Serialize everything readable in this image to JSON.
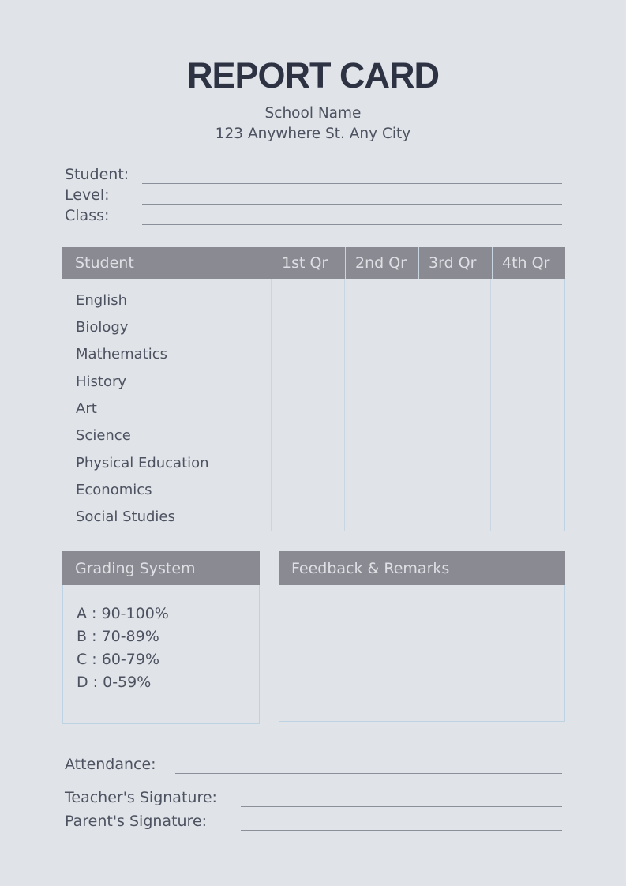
{
  "header": {
    "title": "REPORT CARD",
    "school_name": "School Name",
    "school_address": "123 Anywhere St. Any City"
  },
  "student_info": {
    "fields": [
      {
        "label": "Student:",
        "value": ""
      },
      {
        "label": "Level:",
        "value": ""
      },
      {
        "label": "Class:",
        "value": ""
      }
    ]
  },
  "grades_table": {
    "headers": [
      "Student",
      "1st Qr",
      "2nd Qr",
      "3rd Qr",
      "4th Qr"
    ],
    "subjects": [
      "English",
      "Biology",
      "Mathematics",
      "History",
      "Art",
      "Science",
      "Physical Education",
      "Economics",
      "Social Studies"
    ],
    "grades": {
      "note": "all grade cells are blank"
    }
  },
  "grading_system": {
    "title": "Grading System",
    "items": [
      "A : 90-100%",
      "B : 70-89%",
      "C : 60-79%",
      "D : 0-59%"
    ]
  },
  "feedback": {
    "title": "Feedback & Remarks",
    "content": ""
  },
  "footer": {
    "fields": [
      {
        "label": "Attendance:",
        "value": ""
      },
      {
        "label": "Teacher's Signature:",
        "value": ""
      },
      {
        "label": "Parent's Signature:",
        "value": ""
      }
    ]
  },
  "colors": {
    "page_bg": "#e0e3e8",
    "title": "#2e3344",
    "text": "#4d5260",
    "header_bg": "#8a8a92",
    "header_text": "#dee0e5",
    "underline": "#8b8f99",
    "box_border": "#bdd2e2",
    "divider": "#c9d5e1"
  }
}
